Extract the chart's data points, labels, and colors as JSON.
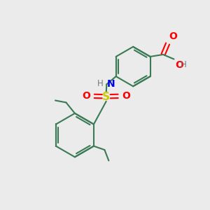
{
  "background_color": "#ebebeb",
  "bond_color": "#3a7a55",
  "bond_width": 1.5,
  "atom_colors": {
    "O": "#ff0000",
    "N": "#0000ee",
    "S": "#cccc00",
    "H": "#777777",
    "C": "#3a7a55"
  },
  "font_size_atom": 10,
  "font_size_H": 8.5,
  "font_size_S": 11
}
